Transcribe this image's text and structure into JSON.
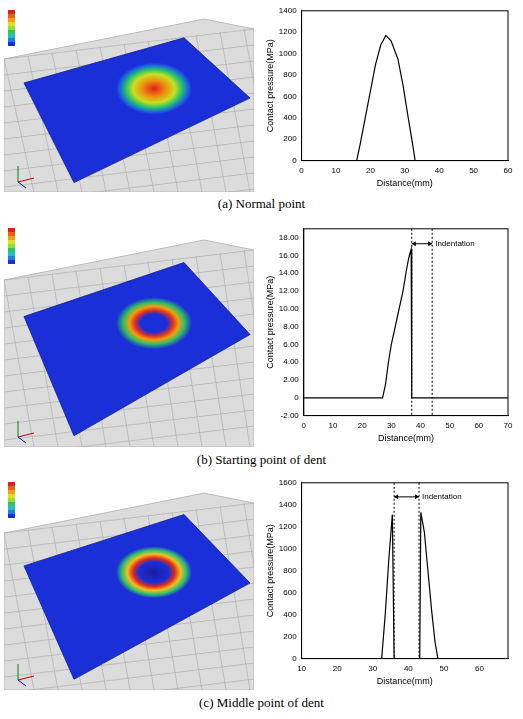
{
  "chart_data": [
    {
      "type": "line",
      "caption": "(a) Normal point",
      "x_label": "Distance(mm)",
      "y_label": "Contact pressure(MPa)",
      "x": [
        0,
        16,
        17,
        18.5,
        20,
        21.5,
        23,
        24.5,
        26,
        28,
        29.5,
        31,
        32.3,
        33,
        60
      ],
      "values": [
        0,
        0,
        150,
        400,
        650,
        900,
        1080,
        1170,
        1120,
        950,
        700,
        400,
        150,
        0,
        0
      ],
      "color": "#000000",
      "marker": "none",
      "grid": false,
      "xlim": [
        0,
        60
      ],
      "xticks": [
        0,
        10,
        20,
        30,
        40,
        50,
        60
      ],
      "ylim": [
        0,
        1400
      ],
      "yticks": [
        0,
        200,
        400,
        600,
        800,
        1000,
        1200,
        1400
      ]
    },
    {
      "type": "line",
      "caption": "(b) Starting point of dent",
      "x_label": "Distance(mm)",
      "y_label": "Contact pressure(MPa)",
      "x": [
        0,
        27,
        28,
        29,
        30,
        31,
        32,
        33,
        34,
        35,
        36,
        36.8,
        37,
        70
      ],
      "values": [
        0,
        0,
        1.5,
        4,
        6,
        7.5,
        9,
        10.5,
        12,
        14,
        15.8,
        16.7,
        0,
        0
      ],
      "color": "#000000",
      "marker": "none",
      "grid": false,
      "xlim": [
        0,
        70
      ],
      "xticks": [
        0,
        10,
        20,
        30,
        40,
        50,
        60,
        70
      ],
      "ylim": [
        -2,
        19
      ],
      "yticks": [
        {
          "value": -2,
          "label": "-2.00"
        },
        {
          "value": 0,
          "label": "0"
        },
        {
          "value": 2,
          "label": "2.00"
        },
        {
          "value": 4,
          "label": "4.00"
        },
        {
          "value": 6,
          "label": "6.00"
        },
        {
          "value": 8,
          "label": "8.00"
        },
        {
          "value": 10,
          "label": "10.00"
        },
        {
          "value": 12,
          "label": "12.00"
        },
        {
          "value": 14,
          "label": "14.00"
        },
        {
          "value": 16,
          "label": "16.00"
        },
        {
          "value": 18,
          "label": "18.00"
        }
      ],
      "indentation": {
        "label": "Indentation",
        "x": [
          37,
          44
        ]
      }
    },
    {
      "type": "line",
      "caption": "(c) Middle point of dent",
      "x_label": "Distance(mm)",
      "y_label": "Contact pressure(MPa)",
      "x": [
        10,
        32.5,
        33.5,
        34.5,
        35.5,
        36,
        43.2,
        43.5,
        44.5,
        45.5,
        46.5,
        47.5,
        48.3,
        68
      ],
      "values": [
        0,
        0,
        400,
        900,
        1310,
        0,
        0,
        1330,
        1150,
        800,
        450,
        150,
        0,
        0
      ],
      "color": "#000000",
      "marker": "none",
      "grid": false,
      "xlim": [
        10,
        68
      ],
      "xticks": [
        10,
        20,
        30,
        40,
        50,
        60
      ],
      "ylim": [
        0,
        1600
      ],
      "yticks": [
        0,
        200,
        400,
        600,
        800,
        1000,
        1200,
        1400,
        1600
      ],
      "indentation": {
        "label": "Indentation",
        "x": [
          36,
          43
        ]
      }
    }
  ]
}
